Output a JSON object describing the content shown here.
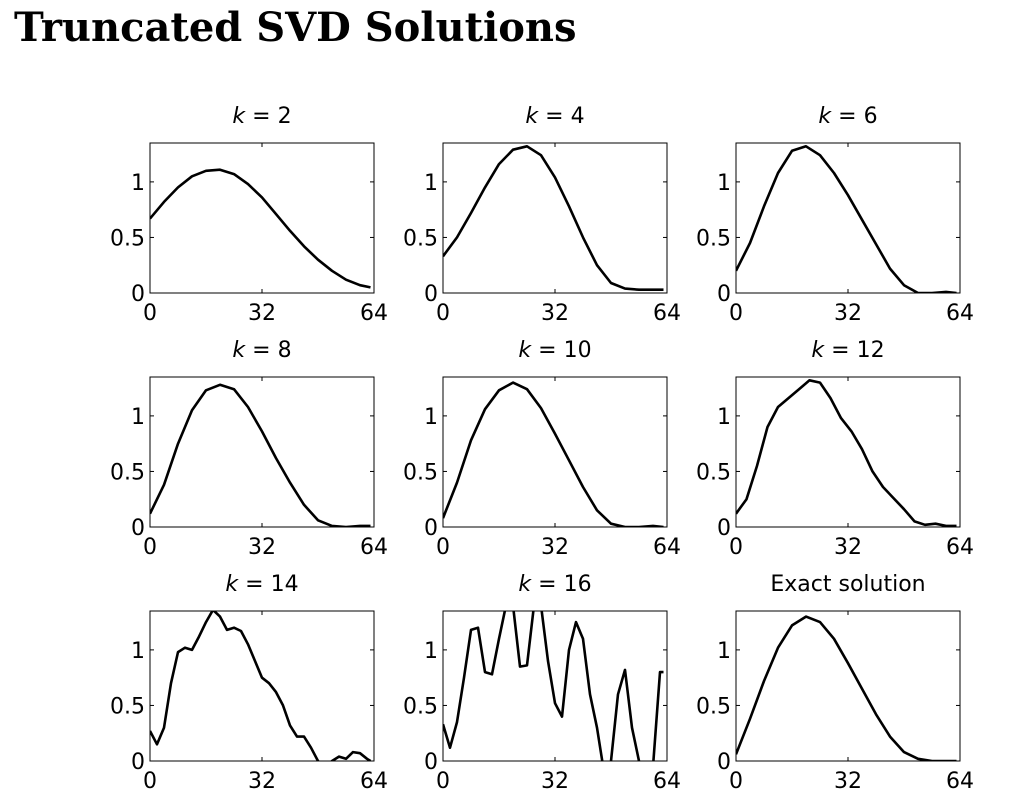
{
  "page": {
    "title": "Truncated SVD Solutions"
  },
  "chart_data": [
    {
      "type": "line",
      "title": "k = 2",
      "title_prefix": "k",
      "title_suffix": " = 2",
      "xlim": [
        0,
        64
      ],
      "ylim": [
        0,
        1.35
      ],
      "xticks": [
        0,
        32,
        64
      ],
      "yticks": [
        0,
        0.5,
        1
      ],
      "xticklabels": [
        "0",
        "32",
        "64"
      ],
      "yticklabels": [
        "0",
        "0.5",
        "1"
      ],
      "series": [
        {
          "x": [
            0,
            4,
            8,
            12,
            16,
            20,
            24,
            28,
            32,
            36,
            40,
            44,
            48,
            52,
            56,
            60,
            63
          ],
          "y": [
            0.67,
            0.82,
            0.95,
            1.05,
            1.1,
            1.11,
            1.07,
            0.98,
            0.86,
            0.71,
            0.56,
            0.42,
            0.3,
            0.2,
            0.12,
            0.07,
            0.05
          ]
        }
      ]
    },
    {
      "type": "line",
      "title": "k = 4",
      "title_prefix": "k",
      "title_suffix": " = 4",
      "xlim": [
        0,
        64
      ],
      "ylim": [
        0,
        1.35
      ],
      "xticks": [
        0,
        32,
        64
      ],
      "yticks": [
        0,
        0.5,
        1
      ],
      "xticklabels": [
        "0",
        "32",
        "64"
      ],
      "yticklabels": [
        "0",
        "0.5",
        "1"
      ],
      "series": [
        {
          "x": [
            0,
            4,
            8,
            12,
            16,
            20,
            24,
            28,
            32,
            36,
            40,
            44,
            48,
            52,
            56,
            60,
            63
          ],
          "y": [
            0.33,
            0.5,
            0.72,
            0.95,
            1.16,
            1.29,
            1.32,
            1.24,
            1.04,
            0.78,
            0.5,
            0.25,
            0.09,
            0.04,
            0.03,
            0.03,
            0.03
          ]
        }
      ]
    },
    {
      "type": "line",
      "title": "k = 6",
      "title_prefix": "k",
      "title_suffix": " = 6",
      "xlim": [
        0,
        64
      ],
      "ylim": [
        0,
        1.35
      ],
      "xticks": [
        0,
        32,
        64
      ],
      "yticks": [
        0,
        0.5,
        1
      ],
      "xticklabels": [
        "0",
        "32",
        "64"
      ],
      "yticklabels": [
        "0",
        "0.5",
        "1"
      ],
      "series": [
        {
          "x": [
            0,
            4,
            8,
            12,
            16,
            20,
            24,
            28,
            32,
            36,
            40,
            44,
            48,
            52,
            56,
            60,
            63
          ],
          "y": [
            0.2,
            0.45,
            0.78,
            1.08,
            1.28,
            1.32,
            1.24,
            1.08,
            0.88,
            0.66,
            0.44,
            0.22,
            0.07,
            0.0,
            0.0,
            0.01,
            0.0
          ]
        }
      ]
    },
    {
      "type": "line",
      "title": "k = 8",
      "title_prefix": "k",
      "title_suffix": " = 8",
      "xlim": [
        0,
        64
      ],
      "ylim": [
        0,
        1.35
      ],
      "xticks": [
        0,
        32,
        64
      ],
      "yticks": [
        0,
        0.5,
        1
      ],
      "xticklabels": [
        "0",
        "32",
        "64"
      ],
      "yticklabels": [
        "0",
        "0.5",
        "1"
      ],
      "series": [
        {
          "x": [
            0,
            4,
            8,
            12,
            16,
            20,
            24,
            28,
            32,
            36,
            40,
            44,
            48,
            52,
            56,
            60,
            63
          ],
          "y": [
            0.12,
            0.38,
            0.75,
            1.05,
            1.23,
            1.28,
            1.24,
            1.08,
            0.86,
            0.62,
            0.4,
            0.2,
            0.06,
            0.01,
            0.0,
            0.01,
            0.01
          ]
        }
      ]
    },
    {
      "type": "line",
      "title": "k = 10",
      "title_prefix": "k",
      "title_suffix": " = 10",
      "xlim": [
        0,
        64
      ],
      "ylim": [
        0,
        1.35
      ],
      "xticks": [
        0,
        32,
        64
      ],
      "yticks": [
        0,
        0.5,
        1
      ],
      "xticklabels": [
        "0",
        "32",
        "64"
      ],
      "yticklabels": [
        "0",
        "0.5",
        "1"
      ],
      "series": [
        {
          "x": [
            0,
            4,
            8,
            12,
            16,
            20,
            24,
            28,
            32,
            36,
            40,
            44,
            48,
            52,
            56,
            60,
            63
          ],
          "y": [
            0.08,
            0.4,
            0.78,
            1.06,
            1.23,
            1.3,
            1.24,
            1.07,
            0.84,
            0.6,
            0.36,
            0.15,
            0.03,
            0.0,
            0.0,
            0.01,
            0.0
          ]
        }
      ]
    },
    {
      "type": "line",
      "title": "k = 12",
      "title_prefix": "k",
      "title_suffix": " = 12",
      "xlim": [
        0,
        64
      ],
      "ylim": [
        0,
        1.35
      ],
      "xticks": [
        0,
        32,
        64
      ],
      "yticks": [
        0,
        0.5,
        1
      ],
      "xticklabels": [
        "0",
        "32",
        "64"
      ],
      "yticklabels": [
        "0",
        "0.5",
        "1"
      ],
      "series": [
        {
          "x": [
            0,
            3,
            6,
            9,
            12,
            15,
            18,
            21,
            24,
            27,
            30,
            33,
            36,
            39,
            42,
            45,
            48,
            51,
            54,
            57,
            60,
            63
          ],
          "y": [
            0.12,
            0.25,
            0.55,
            0.9,
            1.08,
            1.16,
            1.24,
            1.32,
            1.3,
            1.16,
            0.98,
            0.86,
            0.7,
            0.5,
            0.36,
            0.26,
            0.16,
            0.05,
            0.02,
            0.03,
            0.01,
            0.01
          ]
        }
      ]
    },
    {
      "type": "line",
      "title": "k = 14",
      "title_prefix": "k",
      "title_suffix": " = 14",
      "xlim": [
        0,
        64
      ],
      "ylim": [
        0,
        1.35
      ],
      "xticks": [
        0,
        32,
        64
      ],
      "yticks": [
        0,
        0.5,
        1
      ],
      "xticklabels": [
        "0",
        "32",
        "64"
      ],
      "yticklabels": [
        "0",
        "0.5",
        "1"
      ],
      "series": [
        {
          "x": [
            0,
            2,
            4,
            6,
            8,
            10,
            12,
            14,
            16,
            18,
            20,
            22,
            24,
            26,
            28,
            30,
            32,
            34,
            36,
            38,
            40,
            42,
            44,
            46,
            48,
            50,
            52,
            54,
            56,
            58,
            60,
            62,
            63
          ],
          "y": [
            0.27,
            0.15,
            0.3,
            0.7,
            0.98,
            1.02,
            1.0,
            1.12,
            1.25,
            1.36,
            1.3,
            1.18,
            1.2,
            1.17,
            1.05,
            0.9,
            0.75,
            0.7,
            0.62,
            0.5,
            0.32,
            0.22,
            0.22,
            0.12,
            0.0,
            -0.05,
            0.0,
            0.04,
            0.02,
            0.08,
            0.07,
            0.02,
            0.0
          ]
        }
      ]
    },
    {
      "type": "line",
      "title": "k = 16",
      "title_prefix": "k",
      "title_suffix": " = 16",
      "xlim": [
        0,
        64
      ],
      "ylim": [
        0,
        1.35
      ],
      "xticks": [
        0,
        32,
        64
      ],
      "yticks": [
        0,
        0.5,
        1
      ],
      "xticklabels": [
        "0",
        "32",
        "64"
      ],
      "yticklabels": [
        "0",
        "0.5",
        "1"
      ],
      "series": [
        {
          "x": [
            0,
            2,
            4,
            6,
            8,
            10,
            12,
            14,
            16,
            18,
            20,
            22,
            24,
            26,
            28,
            30,
            32,
            34,
            36,
            38,
            40,
            42,
            44,
            46,
            48,
            50,
            52,
            54,
            56,
            58,
            60,
            62,
            63
          ],
          "y": [
            0.33,
            0.12,
            0.35,
            0.75,
            1.18,
            1.2,
            0.8,
            0.78,
            1.1,
            1.4,
            1.4,
            0.85,
            0.86,
            1.4,
            1.4,
            0.9,
            0.52,
            0.4,
            1.0,
            1.25,
            1.1,
            0.6,
            0.3,
            -0.1,
            0.0,
            0.6,
            0.82,
            0.3,
            0.0,
            -0.2,
            -0.05,
            0.8,
            0.8
          ]
        }
      ]
    },
    {
      "type": "line",
      "title": "Exact solution",
      "title_prefix": "",
      "title_suffix": "Exact solution",
      "xlim": [
        0,
        64
      ],
      "ylim": [
        0,
        1.35
      ],
      "xticks": [
        0,
        32,
        64
      ],
      "yticks": [
        0,
        0.5,
        1
      ],
      "xticklabels": [
        "0",
        "32",
        "64"
      ],
      "yticklabels": [
        "0",
        "0.5",
        "1"
      ],
      "series": [
        {
          "x": [
            0,
            4,
            8,
            12,
            16,
            20,
            24,
            28,
            32,
            36,
            40,
            44,
            48,
            52,
            56,
            60,
            63
          ],
          "y": [
            0.06,
            0.38,
            0.72,
            1.02,
            1.22,
            1.3,
            1.25,
            1.1,
            0.88,
            0.65,
            0.42,
            0.22,
            0.08,
            0.02,
            0.0,
            0.0,
            0.0
          ]
        }
      ]
    }
  ]
}
